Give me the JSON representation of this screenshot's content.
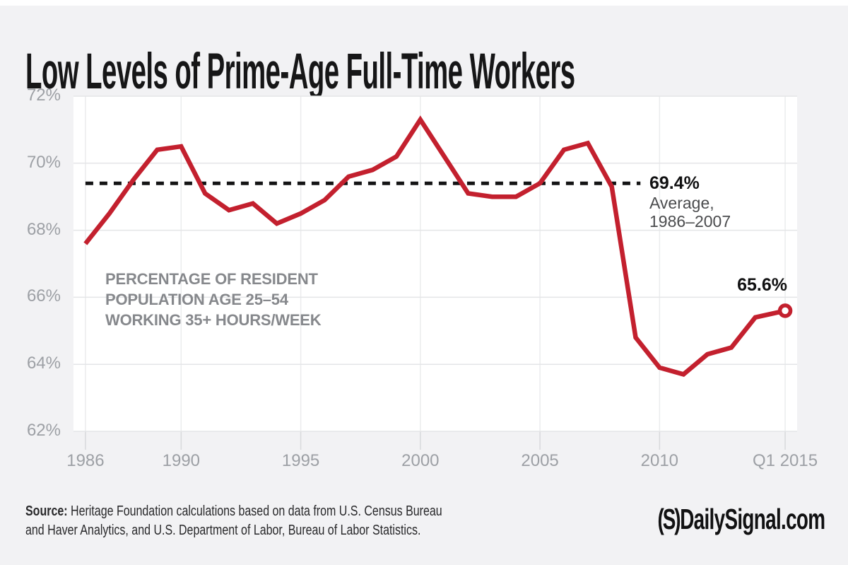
{
  "header": {
    "title": "Low Levels of Prime-Age Full-Time Workers"
  },
  "chart_data": {
    "type": "line",
    "title": "Low Levels of Prime-Age Full-Time Workers",
    "grid": true,
    "xlim": [
      1985.5,
      2015.75
    ],
    "ylim": [
      62,
      72
    ],
    "line_color": "#c3202e",
    "series": [
      {
        "name": "Percentage of resident population age 25–54 working 35+ hours/week",
        "x": [
          1986,
          1987,
          1988,
          1989,
          1990,
          1991,
          1992,
          1993,
          1994,
          1995,
          1996,
          1997,
          1998,
          1999,
          2000,
          2001,
          2002,
          2003,
          2004,
          2005,
          2006,
          2007,
          2008,
          2009,
          2010,
          2011,
          2012,
          2013,
          2014,
          2015.25
        ],
        "values": [
          67.6,
          68.5,
          69.5,
          70.4,
          70.5,
          69.1,
          68.6,
          68.8,
          68.2,
          68.5,
          68.9,
          69.6,
          69.8,
          70.2,
          71.3,
          70.2,
          69.1,
          69.0,
          69.0,
          69.4,
          70.4,
          70.6,
          69.3,
          64.8,
          63.9,
          63.7,
          64.3,
          64.5,
          65.4,
          65.6
        ]
      }
    ],
    "x_ticks": [
      {
        "label": "1986",
        "x": 1986
      },
      {
        "label": "1990",
        "x": 1990
      },
      {
        "label": "1995",
        "x": 1995
      },
      {
        "label": "2000",
        "x": 2000
      },
      {
        "label": "2005",
        "x": 2005
      },
      {
        "label": "2010",
        "x": 2010
      },
      {
        "label": "Q1 2015",
        "x": 2015.25
      }
    ],
    "y_ticks": [
      {
        "label": "72%",
        "value": 72
      },
      {
        "label": "70%",
        "value": 70
      },
      {
        "label": "68%",
        "value": 68
      },
      {
        "label": "66%",
        "value": 66
      },
      {
        "label": "64%",
        "value": 64
      },
      {
        "label": "62%",
        "value": 62
      }
    ],
    "average_line": {
      "value": 69.4,
      "x_start": 1986,
      "x_end": 2009.2,
      "style": "dashed",
      "color": "#141415"
    },
    "end_marker": {
      "x": 2015.25,
      "value": 65.6
    }
  },
  "annotations": {
    "average": {
      "value_label": "69.4%",
      "line2": "Average,",
      "line3": "1986–2007"
    },
    "end": {
      "label": "65.6%"
    },
    "caption": {
      "line1": "PERCENTAGE OF RESIDENT",
      "line2": "POPULATION AGE 25–54",
      "line3": "WORKING 35+ HOURS/WEEK"
    }
  },
  "footer": {
    "source_label": "Source:",
    "source_line1": " Heritage Foundation calculations based on data from U.S. Census Bureau",
    "source_line2": "and Haver Analytics, and U.S. Department of Labor, Bureau of Labor Statistics.",
    "logo_mark": "(S)",
    "logo_name": "DailySignal.com"
  },
  "colors": {
    "page_background": "#f2f2f4",
    "plot_background": "#ffffff",
    "gridline": "#e5e6e8",
    "tick": "#d8d9dc",
    "axis_text": "#9da0a5",
    "line_red": "#c3202e",
    "dashed_black": "#141415",
    "caption_gray": "#86888c"
  }
}
